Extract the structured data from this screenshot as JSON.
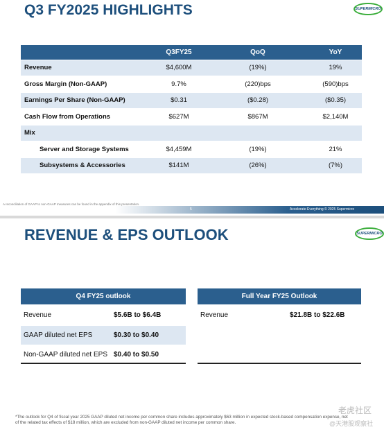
{
  "slide1": {
    "title": "Q3 FY2025 HIGHLIGHTS",
    "logo": "SUPERMICRO",
    "table": {
      "header": [
        "Q3FY25",
        "QoQ",
        "YoY"
      ],
      "rows": [
        [
          "Revenue",
          "$4,600M",
          "(19%)",
          "19%"
        ],
        [
          "Gross Margin (Non-GAAP)",
          "9.7%",
          "(220)bps",
          "(590)bps"
        ],
        [
          "Earnings Per Share (Non-GAAP)",
          "$0.31",
          "($0.28)",
          "($0.35)"
        ],
        [
          "Cash Flow from Operations",
          "$627M",
          "$867M",
          "$2,140M"
        ],
        [
          "Mix"
        ],
        [
          "Server and Storage Systems",
          "$4,459M",
          "(19%)",
          "21%"
        ],
        [
          "Subsystems & Accessories",
          "$141M",
          "(26%)",
          "(7%)"
        ]
      ]
    },
    "footnote": "A reconciliation of GAAP to non-GAAP measures can be found in the appendix of this presentation.",
    "page_number": "5",
    "footer": "Accelerate Everything © 2025 Supermicro"
  },
  "slide2": {
    "title": "REVENUE & EPS OUTLOOK",
    "logo": "SUPERMICRO",
    "panels": [
      {
        "title": "Q4 FY25 outlook",
        "rows": [
          [
            "Revenue",
            "$5.6B to $6.4B"
          ],
          [
            "GAAP diluted net EPS",
            "$0.30 to $0.40"
          ],
          [
            "Non-GAAP diluted net EPS",
            "$0.40 to $0.50"
          ]
        ]
      },
      {
        "title": "Full Year FY25 Outlook",
        "rows": [
          [
            "Revenue",
            "$21.8B to $22.6B"
          ]
        ]
      }
    ],
    "footnote": "*The outlook for Q4 of fiscal year 2025 GAAP diluted net income per common share includes approximately $63 million in expected stock-based compensation expense, net of the related tax effects of $18 million, which are excluded from non-GAAP diluted net income per common share.",
    "watermark": [
      "老虎社区",
      "@天港股观察社"
    ]
  }
}
